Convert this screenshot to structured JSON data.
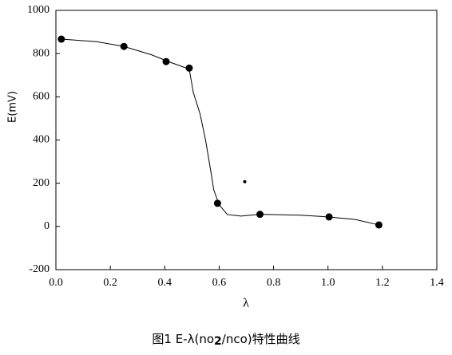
{
  "chart_data": {
    "type": "scatter",
    "title_parts": [
      "图1  E-λ(no",
      "2",
      "/nco)特性曲线"
    ],
    "x_label": "λ",
    "y_label": "E(mV)",
    "xlim": [
      0,
      1.4
    ],
    "ylim": [
      -200,
      1000
    ],
    "xticks": [
      {
        "value": 0,
        "label": "0.0"
      },
      0.2,
      0.4,
      0.6,
      0.8,
      {
        "value": 1,
        "label": "1.0"
      },
      1.2,
      1.4
    ],
    "yticks": [
      -200,
      0,
      200,
      400,
      600,
      800,
      1000
    ],
    "grid": false,
    "color": "#000000",
    "series": [
      {
        "kind": "points",
        "x": [
          0.02,
          0.25,
          0.405,
          0.49,
          0.594,
          0.75,
          1.004,
          1.187
        ],
        "values": [
          867,
          833,
          763,
          733,
          107,
          56,
          44,
          7
        ]
      },
      {
        "kind": "dot",
        "x": [
          0.694
        ],
        "values": [
          207
        ]
      },
      {
        "kind": "curve",
        "x": [
          0.02,
          0.15,
          0.25,
          0.35,
          0.42,
          0.49,
          0.505,
          0.53,
          0.55,
          0.57,
          0.58,
          0.6,
          0.63,
          0.68,
          0.75,
          0.9,
          1.0,
          1.1,
          1.187
        ],
        "values": [
          867,
          855,
          833,
          795,
          760,
          728,
          620,
          520,
          400,
          250,
          170,
          100,
          55,
          48,
          56,
          52,
          44,
          32,
          7
        ]
      }
    ]
  }
}
